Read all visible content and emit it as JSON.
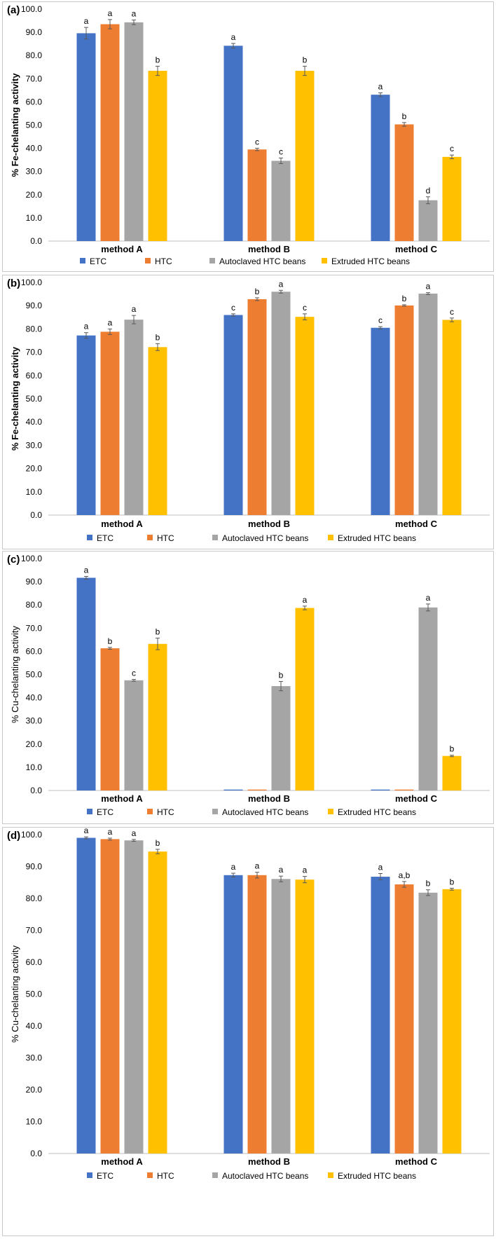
{
  "colors": {
    "ETC": "#4472C4",
    "HTC": "#ED7D31",
    "Autoclaved HTC beans": "#A5A5A5",
    "Extruded HTC beans": "#FFC000",
    "axis": "#BFBFBF",
    "text": "#000000",
    "error": "#595959"
  },
  "chart_data": [
    {
      "type": "bar",
      "panel_label": "(a)",
      "ylabel": "% Fe-chelanting activity",
      "ylabel_bold": true,
      "categories": [
        "method A",
        "method B",
        "method C"
      ],
      "ylim": [
        0,
        100
      ],
      "yticks": [
        "0.0",
        "10.0",
        "20.0",
        "30.0",
        "40.0",
        "50.0",
        "60.0",
        "70.0",
        "80.0",
        "90.0",
        "100.0"
      ],
      "series": [
        {
          "name": "ETC",
          "values": [
            89.6,
            84.2,
            63.1
          ],
          "errors": [
            2.5,
            1.0,
            0.8
          ],
          "letters": [
            "a",
            "a",
            "a"
          ]
        },
        {
          "name": "HTC",
          "values": [
            93.5,
            39.5,
            50.3
          ],
          "errors": [
            2.0,
            0.5,
            0.8
          ],
          "letters": [
            "a",
            "c",
            "b"
          ]
        },
        {
          "name": "Autoclaved HTC beans",
          "values": [
            94.3,
            34.6,
            17.6
          ],
          "errors": [
            1.0,
            1.2,
            1.5
          ],
          "letters": [
            "a",
            "c",
            "d"
          ]
        },
        {
          "name": "Extruded HTC beans",
          "values": [
            73.4,
            73.4,
            36.3
          ],
          "errors": [
            2.0,
            2.0,
            0.8
          ],
          "letters": [
            "b",
            "b",
            "c"
          ]
        }
      ],
      "legend": "bottom"
    },
    {
      "type": "bar",
      "panel_label": "(b)",
      "ylabel": "% Fe-chelanting activity",
      "ylabel_bold": true,
      "categories": [
        "method A",
        "method B",
        "method C"
      ],
      "ylim": [
        0,
        100
      ],
      "yticks": [
        "0.0",
        "10.0",
        "20.0",
        "30.0",
        "40.0",
        "50.0",
        "60.0",
        "70.0",
        "80.0",
        "90.0",
        "100.0"
      ],
      "series": [
        {
          "name": "ETC",
          "values": [
            77.2,
            86.0,
            80.5
          ],
          "errors": [
            1.2,
            0.5,
            0.5
          ],
          "letters": [
            "a",
            "c",
            "c"
          ]
        },
        {
          "name": "HTC",
          "values": [
            78.8,
            92.8,
            90.1
          ],
          "errors": [
            1.2,
            0.6,
            0.3
          ],
          "letters": [
            "a",
            "b",
            "b"
          ]
        },
        {
          "name": "Autoclaved HTC beans",
          "values": [
            84.0,
            96.0,
            95.2
          ],
          "errors": [
            1.8,
            0.6,
            0.4
          ],
          "letters": [
            "a",
            "a",
            "a"
          ]
        },
        {
          "name": "Extruded HTC beans",
          "values": [
            72.2,
            85.2,
            83.9
          ],
          "errors": [
            1.5,
            1.3,
            0.8
          ],
          "letters": [
            "b",
            "c",
            "c"
          ]
        }
      ],
      "legend": "bottom"
    },
    {
      "type": "bar",
      "panel_label": "(c)",
      "ylabel": "% Cu-chelanting activity",
      "ylabel_bold": false,
      "categories": [
        "method A",
        "method B",
        "method C"
      ],
      "ylim": [
        0,
        100
      ],
      "yticks": [
        "0.0",
        "10.0",
        "20.0",
        "30.0",
        "40.0",
        "50.0",
        "60.0",
        "70.0",
        "80.0",
        "90.0",
        "100.0"
      ],
      "series": [
        {
          "name": "ETC",
          "values": [
            91.7,
            0.4,
            0.4
          ],
          "errors": [
            0.6,
            0,
            0
          ],
          "letters": [
            "a",
            "",
            ""
          ]
        },
        {
          "name": "HTC",
          "values": [
            61.3,
            0.4,
            0.4
          ],
          "errors": [
            0.4,
            0,
            0
          ],
          "letters": [
            "b",
            "",
            ""
          ]
        },
        {
          "name": "Autoclaved HTC beans",
          "values": [
            47.5,
            45.0,
            78.9
          ],
          "errors": [
            0.4,
            2.0,
            1.5
          ],
          "letters": [
            "c",
            "b",
            "a"
          ]
        },
        {
          "name": "Extruded HTC beans",
          "values": [
            63.2,
            78.7,
            14.9
          ],
          "errors": [
            2.5,
            0.8,
            0.3
          ],
          "letters": [
            "b",
            "a",
            "b"
          ]
        }
      ],
      "legend": "bottom"
    },
    {
      "type": "bar",
      "panel_label": "(d)",
      "ylabel": "% Cu-chelanting activity",
      "ylabel_bold": false,
      "categories": [
        "method A",
        "method B",
        "method C"
      ],
      "ylim": [
        0,
        100
      ],
      "yticks": [
        "0.0",
        "10.0",
        "20.0",
        "30.0",
        "40.0",
        "50.0",
        "60.0",
        "70.0",
        "80.0",
        "90.0",
        "100.0"
      ],
      "series": [
        {
          "name": "ETC",
          "values": [
            99.0,
            87.3,
            86.8
          ],
          "errors": [
            0.3,
            0.6,
            1.0
          ],
          "letters": [
            "a",
            "a",
            "a"
          ]
        },
        {
          "name": "HTC",
          "values": [
            98.6,
            87.3,
            84.4
          ],
          "errors": [
            0.3,
            0.9,
            0.9
          ],
          "letters": [
            "a",
            "a",
            "a,b"
          ]
        },
        {
          "name": "Autoclaved HTC beans",
          "values": [
            98.2,
            86.1,
            81.8
          ],
          "errors": [
            0.3,
            0.9,
            0.9
          ],
          "letters": [
            "a",
            "a",
            "b"
          ]
        },
        {
          "name": "Extruded HTC beans",
          "values": [
            94.7,
            85.9,
            82.9
          ],
          "errors": [
            0.7,
            1.0,
            0.3
          ],
          "letters": [
            "b",
            "a",
            "b"
          ]
        }
      ],
      "legend": "bottom"
    }
  ]
}
